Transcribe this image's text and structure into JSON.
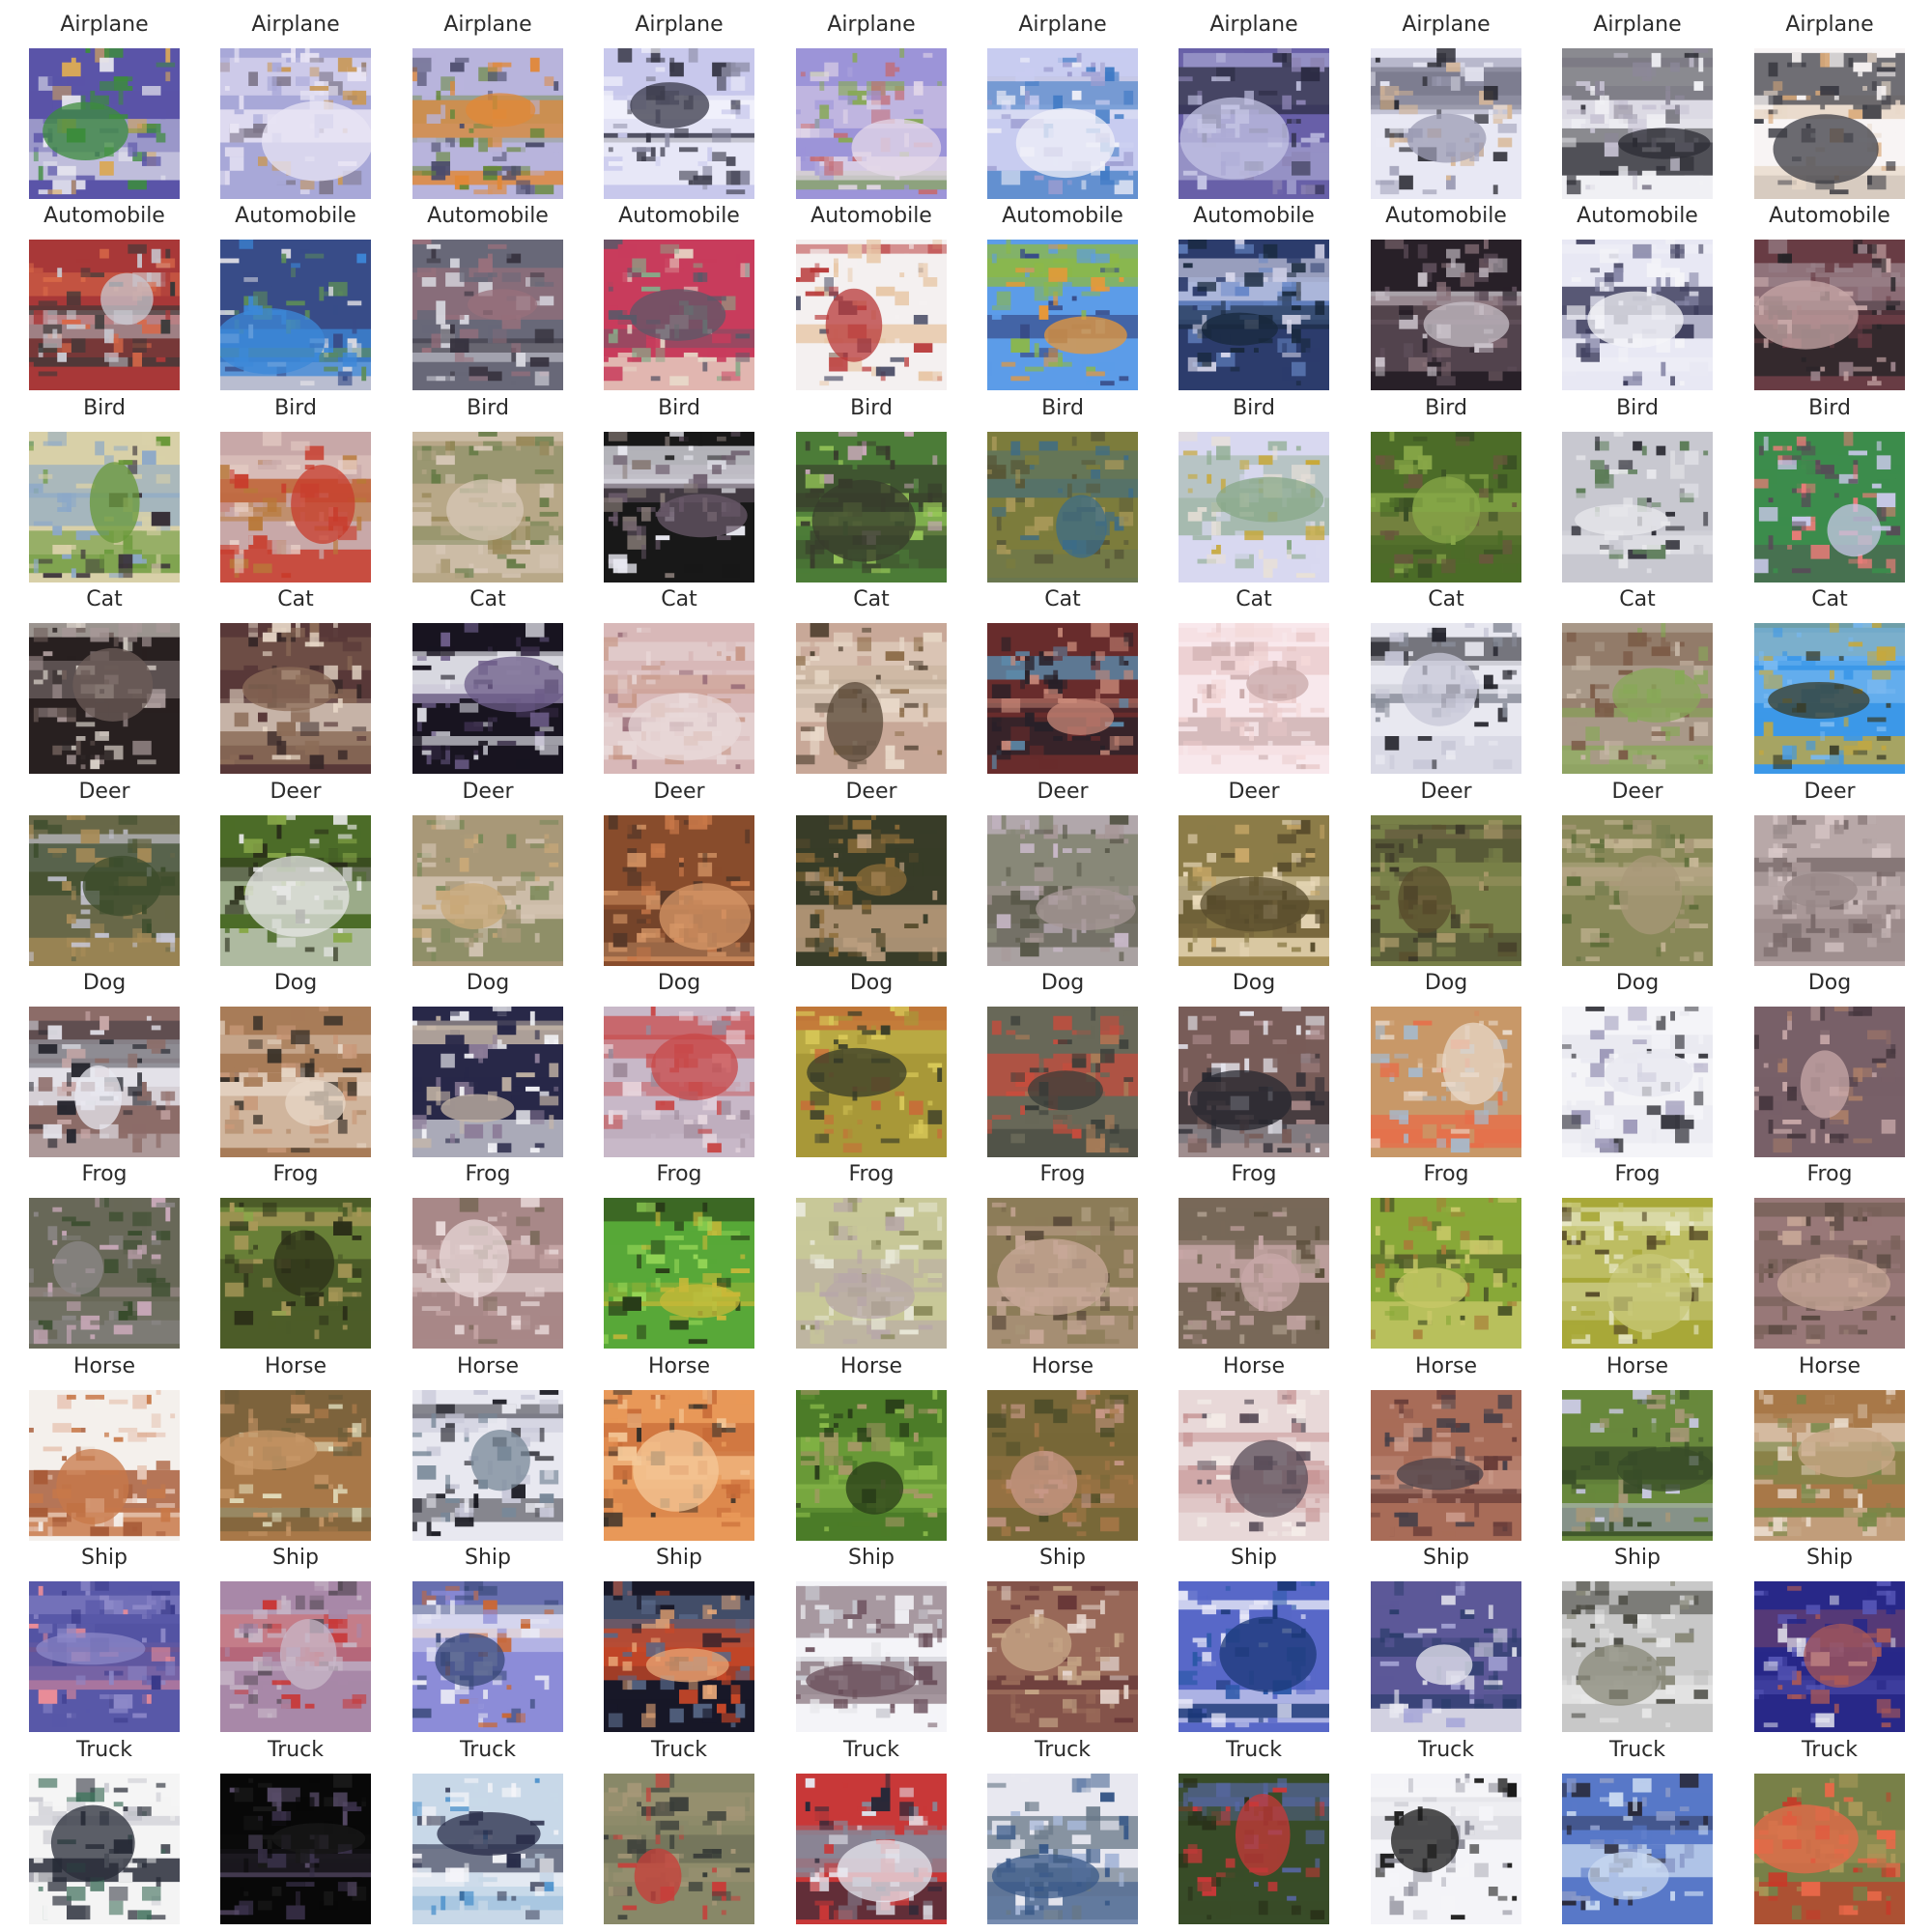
{
  "samples": [
    {
      "label": "Airplane",
      "palette": [
        "#5a54a8",
        "#e8e8f0",
        "#3c8c3c",
        "#d8a858"
      ]
    },
    {
      "label": "Airplane",
      "palette": [
        "#a8a8d8",
        "#e8e4f4",
        "#7c7488",
        "#c89858"
      ]
    },
    {
      "label": "Airplane",
      "palette": [
        "#b8b4dc",
        "#e08838",
        "#68883c",
        "#4c4c6c"
      ]
    },
    {
      "label": "Airplane",
      "palette": [
        "#c8c8ec",
        "#f4f4fc",
        "#383848",
        "#8c8ca4"
      ]
    },
    {
      "label": "Airplane",
      "palette": [
        "#9c94d8",
        "#e4d8e8",
        "#c46c74",
        "#88a858"
      ]
    },
    {
      "label": "Airplane",
      "palette": [
        "#c8ccf0",
        "#3c78c4",
        "#f0f0f8",
        "#9c9cd0"
      ]
    },
    {
      "label": "Airplane",
      "palette": [
        "#6860a8",
        "#c4c4e4",
        "#2c2c44",
        "#8c84b4"
      ]
    },
    {
      "label": "Airplane",
      "palette": [
        "#e8e8f4",
        "#282830",
        "#9c9cb4",
        "#d8b898"
      ]
    },
    {
      "label": "Airplane",
      "palette": [
        "#f0f0f4",
        "#c8c4d4",
        "#2c2c34",
        "#8c8898"
      ]
    },
    {
      "label": "Airplane",
      "palette": [
        "#f8f4f4",
        "#e8d8c8",
        "#3c3c44",
        "#d8a878"
      ]
    },
    {
      "label": "Automobile",
      "palette": [
        "#a83838",
        "#c8c8d0",
        "#383838",
        "#d86848"
      ]
    },
    {
      "label": "Automobile",
      "palette": [
        "#384c88",
        "#3c88d8",
        "#5c8c58",
        "#d8d8e0"
      ]
    },
    {
      "label": "Automobile",
      "palette": [
        "#686878",
        "#d8d8e0",
        "#383440",
        "#98707c"
      ]
    },
    {
      "label": "Automobile",
      "palette": [
        "#c83c5c",
        "#e8d8c8",
        "#5c5868",
        "#88a888"
      ]
    },
    {
      "label": "Automobile",
      "palette": [
        "#f4f0f0",
        "#b83838",
        "#383c58",
        "#e8c8a8"
      ]
    },
    {
      "label": "Automobile",
      "palette": [
        "#5c9ce8",
        "#8cb848",
        "#e89838",
        "#384c88"
      ]
    },
    {
      "label": "Automobile",
      "palette": [
        "#2c3c6c",
        "#6888c8",
        "#d8d8ec",
        "#18283c"
      ]
    },
    {
      "label": "Automobile",
      "palette": [
        "#282028",
        "#c8c0c8",
        "#5c4c58",
        "#887078"
      ]
    },
    {
      "label": "Automobile",
      "palette": [
        "#e8e8f4",
        "#8888a8",
        "#f4f4f8",
        "#3c3c5c"
      ]
    },
    {
      "label": "Automobile",
      "palette": [
        "#683c44",
        "#c8a8a8",
        "#282428",
        "#988088"
      ]
    },
    {
      "label": "Bird",
      "palette": [
        "#d8d0a8",
        "#383038",
        "#689838",
        "#8ca8c8"
      ]
    },
    {
      "label": "Bird",
      "palette": [
        "#c8a8a8",
        "#b87838",
        "#c83c2c",
        "#e8d0c8"
      ]
    },
    {
      "label": "Bird",
      "palette": [
        "#b8a888",
        "#988858",
        "#d8c8b8",
        "#687c48"
      ]
    },
    {
      "label": "Bird",
      "palette": [
        "#181818",
        "#e8e8f0",
        "#685868",
        "#887c78"
      ]
    },
    {
      "label": "Bird",
      "palette": [
        "#4c7c38",
        "#98c858",
        "#383c2c",
        "#c8a8b8"
      ]
    },
    {
      "label": "Bird",
      "palette": [
        "#7c7c3c",
        "#a89858",
        "#3c6c88",
        "#585838"
      ]
    },
    {
      "label": "Bird",
      "palette": [
        "#d8d8f0",
        "#c8a838",
        "#88a888",
        "#e8e0d8"
      ]
    },
    {
      "label": "Bird",
      "palette": [
        "#4c6c28",
        "#384c24",
        "#68583c",
        "#88a848"
      ]
    },
    {
      "label": "Bird",
      "palette": [
        "#c8c8d0",
        "#2c2c34",
        "#e8e8ec",
        "#5c7c58"
      ]
    },
    {
      "label": "Bird",
      "palette": [
        "#3c8c4c",
        "#c8c8e8",
        "#584858",
        "#e87c78"
      ]
    },
    {
      "label": "Cat",
      "palette": [
        "#282020",
        "#a89898",
        "#d8d0c8",
        "#6c5c58"
      ]
    },
    {
      "label": "Cat",
      "palette": [
        "#583838",
        "#e8d8c8",
        "#8c6c58",
        "#382828"
      ]
    },
    {
      "label": "Cat",
      "palette": [
        "#181420",
        "#6c5c88",
        "#e8e8f0",
        "#382c48"
      ]
    },
    {
      "label": "Cat",
      "palette": [
        "#d8b8b8",
        "#c89888",
        "#e8d8d8",
        "#986c78"
      ]
    },
    {
      "label": "Cat",
      "palette": [
        "#c8a898",
        "#8c6c48",
        "#e8d8c8",
        "#584838"
      ]
    },
    {
      "label": "Cat",
      "palette": [
        "#682c2c",
        "#5c88a8",
        "#c88878",
        "#282028"
      ]
    },
    {
      "label": "Cat",
      "palette": [
        "#f8e8ec",
        "#e8c8c8",
        "#f4d8d8",
        "#c8a8a8"
      ]
    },
    {
      "label": "Cat",
      "palette": [
        "#e8e8f0",
        "#282830",
        "#888c98",
        "#c8c8d8"
      ]
    },
    {
      "label": "Cat",
      "palette": [
        "#a89888",
        "#7c5c48",
        "#88a858",
        "#c8b8a8"
      ]
    },
    {
      "label": "Cat",
      "palette": [
        "#3c98e8",
        "#c8a838",
        "#383c28",
        "#78b8f0"
      ]
    },
    {
      "label": "Deer",
      "palette": [
        "#686848",
        "#a88c58",
        "#c8c8d8",
        "#3c4c2c"
      ]
    },
    {
      "label": "Deer",
      "palette": [
        "#4c6c28",
        "#88a848",
        "#e8e8e8",
        "#282c18"
      ]
    },
    {
      "label": "Deer",
      "palette": [
        "#a89878",
        "#c8a878",
        "#788858",
        "#d8c8b8"
      ]
    },
    {
      "label": "Deer",
      "palette": [
        "#884c2c",
        "#c87848",
        "#583828",
        "#d89868"
      ]
    },
    {
      "label": "Deer",
      "palette": [
        "#383c28",
        "#8c6c38",
        "#c8a888",
        "#584c2c"
      ]
    },
    {
      "label": "Deer",
      "palette": [
        "#888878",
        "#a89898",
        "#585848",
        "#c8b8c8"
      ]
    },
    {
      "label": "Deer",
      "palette": [
        "#8c7c48",
        "#c8a868",
        "#584c2c",
        "#e8d8b8"
      ]
    },
    {
      "label": "Deer",
      "palette": [
        "#788048",
        "#584c2c",
        "#a89868",
        "#3c3828"
      ]
    },
    {
      "label": "Deer",
      "palette": [
        "#888858",
        "#5c6c38",
        "#a89878",
        "#c8b898"
      ]
    },
    {
      "label": "Deer",
      "palette": [
        "#b8a8a8",
        "#d8c8c8",
        "#786868",
        "#988888"
      ]
    },
    {
      "label": "Dog",
      "palette": [
        "#8c6c68",
        "#c8a8a8",
        "#282830",
        "#e8e8f0"
      ]
    },
    {
      "label": "Dog",
      "palette": [
        "#a87c58",
        "#c89878",
        "#383028",
        "#e8d8c8"
      ]
    },
    {
      "label": "Dog",
      "palette": [
        "#282848",
        "#f0f0f4",
        "#8c7c98",
        "#c8b8a8"
      ]
    },
    {
      "label": "Dog",
      "palette": [
        "#c8b8c8",
        "#9c8898",
        "#e8d8e0",
        "#c84848"
      ]
    },
    {
      "label": "Dog",
      "palette": [
        "#a89838",
        "#d8c858",
        "#383c28",
        "#c86c38"
      ]
    },
    {
      "label": "Dog",
      "palette": [
        "#686858",
        "#a87c58",
        "#c84c3c",
        "#383c38"
      ]
    },
    {
      "label": "Dog",
      "palette": [
        "#785c58",
        "#a88888",
        "#282830",
        "#e8e8f0"
      ]
    },
    {
      "label": "Dog",
      "palette": [
        "#c89868",
        "#e8d8c8",
        "#a8b8c8",
        "#e86c48"
      ]
    },
    {
      "label": "Dog",
      "palette": [
        "#f4f4f8",
        "#383840",
        "#9c98b8",
        "#e8e8f0"
      ]
    },
    {
      "label": "Dog",
      "palette": [
        "#786068",
        "#a87c68",
        "#c8a8a8",
        "#483840"
      ]
    },
    {
      "label": "Frog",
      "palette": [
        "#686858",
        "#8c8888",
        "#384c2c",
        "#c8a8b8"
      ]
    },
    {
      "label": "Frog",
      "palette": [
        "#4c5c28",
        "#88a848",
        "#2c3018",
        "#a89858"
      ]
    },
    {
      "label": "Frog",
      "palette": [
        "#a88888",
        "#786858",
        "#c8a8a8",
        "#e8d8d8"
      ]
    },
    {
      "label": "Frog",
      "palette": [
        "#58a838",
        "#98d858",
        "#c8b838",
        "#283c18"
      ]
    },
    {
      "label": "Frog",
      "palette": [
        "#c8c898",
        "#e8e8d8",
        "#888858",
        "#b8a8a8"
      ]
    },
    {
      "label": "Frog",
      "palette": [
        "#8c7c58",
        "#a89878",
        "#584838",
        "#c8a898"
      ]
    },
    {
      "label": "Frog",
      "palette": [
        "#786858",
        "#a89888",
        "#584c38",
        "#c8a8a8"
      ]
    },
    {
      "label": "Frog",
      "palette": [
        "#88a838",
        "#a87c38",
        "#4c5828",
        "#c8c868"
      ]
    },
    {
      "label": "Frog",
      "palette": [
        "#a8a838",
        "#e8e8c8",
        "#584c28",
        "#c8c878"
      ]
    },
    {
      "label": "Frog",
      "palette": [
        "#987878",
        "#786058",
        "#c8a898",
        "#584840"
      ]
    },
    {
      "label": "Horse",
      "palette": [
        "#f4f0ec",
        "#c87848",
        "#a85c38",
        "#e8c8b8"
      ]
    },
    {
      "label": "Horse",
      "palette": [
        "#a87848",
        "#6c5c38",
        "#e8e8c8",
        "#c89868"
      ]
    },
    {
      "label": "Horse",
      "palette": [
        "#e8e8f0",
        "#181820",
        "#788898",
        "#c8c8d8"
      ]
    },
    {
      "label": "Horse",
      "palette": [
        "#e89858",
        "#c86c38",
        "#383028",
        "#f4c898"
      ]
    },
    {
      "label": "Horse",
      "palette": [
        "#4c7c28",
        "#88b848",
        "#283c18",
        "#a89868"
      ]
    },
    {
      "label": "Horse",
      "palette": [
        "#786838",
        "#a87848",
        "#4c4c28",
        "#c89888"
      ]
    },
    {
      "label": "Horse",
      "palette": [
        "#e8d8d8",
        "#c89898",
        "#584c58",
        "#f4ece8"
      ]
    },
    {
      "label": "Horse",
      "palette": [
        "#a86c58",
        "#683c38",
        "#c89888",
        "#484048"
      ]
    },
    {
      "label": "Horse",
      "palette": [
        "#68883c",
        "#c8c8e0",
        "#384c28",
        "#a89878"
      ]
    },
    {
      "label": "Horse",
      "palette": [
        "#a87848",
        "#c8a888",
        "#788848",
        "#e8d8c8"
      ]
    },
    {
      "label": "Ship",
      "palette": [
        "#5858a8",
        "#8c88c8",
        "#383888",
        "#e88c98"
      ]
    },
    {
      "label": "Ship",
      "palette": [
        "#a888a8",
        "#c8b8c8",
        "#c83838",
        "#584c58"
      ]
    },
    {
      "label": "Ship",
      "palette": [
        "#8c8cd8",
        "#c86838",
        "#e8e8f4",
        "#384878"
      ]
    },
    {
      "label": "Ship",
      "palette": [
        "#181828",
        "#c84828",
        "#586888",
        "#e8a878"
      ]
    },
    {
      "label": "Ship",
      "palette": [
        "#f4f4f8",
        "#c8c8d0",
        "#684c58",
        "#e8e8ec"
      ]
    },
    {
      "label": "Ship",
      "palette": [
        "#986858",
        "#c8a888",
        "#683838",
        "#e8d8d0"
      ]
    },
    {
      "label": "Ship",
      "palette": [
        "#5868c8",
        "#2c58a8",
        "#e8e8f8",
        "#1c3878"
      ]
    },
    {
      "label": "Ship",
      "palette": [
        "#5c5898",
        "#a8a8d8",
        "#e8e8f0",
        "#2c3c6c"
      ]
    },
    {
      "label": "Ship",
      "palette": [
        "#c8c8c8",
        "#888878",
        "#484840",
        "#e8e8e8"
      ]
    },
    {
      "label": "Ship",
      "palette": [
        "#282888",
        "#e8e8f0",
        "#a85858",
        "#5858b8"
      ]
    },
    {
      "label": "Truck",
      "palette": [
        "#f4f4f4",
        "#3c6c58",
        "#c8c8d0",
        "#282c38"
      ]
    },
    {
      "label": "Truck",
      "palette": [
        "#080808",
        "#383048",
        "#181818",
        "#584c68"
      ]
    },
    {
      "label": "Truck",
      "palette": [
        "#c8d8e8",
        "#3c88c8",
        "#f4f4f8",
        "#282c48"
      ]
    },
    {
      "label": "Truck",
      "palette": [
        "#888868",
        "#c83c38",
        "#a89878",
        "#383c38"
      ]
    },
    {
      "label": "Truck",
      "palette": [
        "#c83838",
        "#e8e8f0",
        "#282838",
        "#888898"
      ]
    },
    {
      "label": "Truck",
      "palette": [
        "#e8e8f0",
        "#385888",
        "#a8b8d8",
        "#687888"
      ]
    },
    {
      "label": "Truck",
      "palette": [
        "#384c28",
        "#c83838",
        "#5868a8",
        "#283018"
      ]
    },
    {
      "label": "Truck",
      "palette": [
        "#f4f4f8",
        "#181818",
        "#8c8c98",
        "#c8c8d0"
      ]
    },
    {
      "label": "Truck",
      "palette": [
        "#5878c8",
        "#c8d8f0",
        "#282838",
        "#8898c8"
      ]
    },
    {
      "label": "Truck",
      "palette": [
        "#788048",
        "#c83828",
        "#a89858",
        "#e86848"
      ]
    }
  ]
}
